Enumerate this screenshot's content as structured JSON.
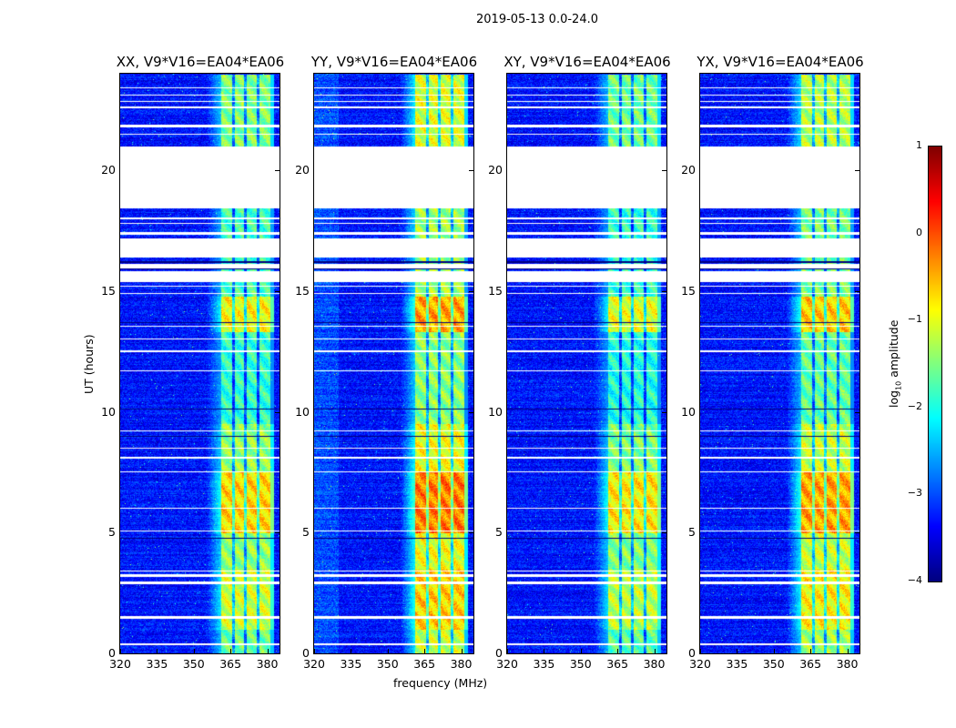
{
  "chart_data": {
    "type": "heatmap",
    "title": "2019-05-13 0.0-24.0",
    "xlabel": "frequency (MHz)",
    "ylabel": "UT (hours)",
    "xlim": [
      320,
      385
    ],
    "ylim": [
      0,
      24
    ],
    "xticks": [
      "320",
      "335",
      "350",
      "365",
      "380"
    ],
    "xtick_values": [
      320,
      335,
      350,
      365,
      380
    ],
    "yticks": [
      "0",
      "5",
      "10",
      "15",
      "20"
    ],
    "ytick_values": [
      0,
      5,
      10,
      15,
      20
    ],
    "panels": [
      {
        "title": "XX, V9*V16=EA04*EA06",
        "level_offset": 0
      },
      {
        "title": "YY, V9*V16=EA04*EA06",
        "level_offset": 0.45
      },
      {
        "title": "XY, V9*V16=EA04*EA06",
        "level_offset": -0.1
      },
      {
        "title": "YX, V9*V16=EA04*EA06",
        "level_offset": 0.25
      }
    ],
    "colorbar": {
      "label": "log10 amplitude",
      "label_main": "log",
      "label_sub": "10",
      "label_rest": " amplitude",
      "range": [
        -4,
        1
      ],
      "ticks": [
        "1",
        "0",
        "−1",
        "−2",
        "−3",
        "−4"
      ],
      "tick_values": [
        1,
        0,
        -1,
        -2,
        -3,
        -4
      ],
      "colormap": "jet"
    },
    "background_level": -3.3,
    "rfi_band_mhz": [
      361,
      381
    ],
    "band_gaps_mhz": [
      366,
      371,
      376
    ],
    "band_levels_by_hour": [
      {
        "from": 0,
        "to": 1,
        "level": -1.6
      },
      {
        "from": 1,
        "to": 3.5,
        "level": -1.1
      },
      {
        "from": 3.5,
        "to": 5,
        "level": -1.4
      },
      {
        "from": 5,
        "to": 7.5,
        "level": -0.7
      },
      {
        "from": 7.5,
        "to": 9.5,
        "level": -1.4
      },
      {
        "from": 9.5,
        "to": 13.3,
        "level": -1.9
      },
      {
        "from": 13.3,
        "to": 14.8,
        "level": -0.9
      },
      {
        "from": 14.8,
        "to": 18.5,
        "level": -1.8
      },
      {
        "from": 21,
        "to": 24,
        "level": -1.5
      }
    ],
    "flagged_hours": [
      [
        0.35,
        0.45
      ],
      [
        1.45,
        1.55
      ],
      [
        2.9,
        3.0
      ],
      [
        3.2,
        3.28
      ],
      [
        3.4,
        3.45
      ],
      [
        5.05,
        5.1
      ],
      [
        6.0,
        6.06
      ],
      [
        7.5,
        7.56
      ],
      [
        8.1,
        8.14
      ],
      [
        8.5,
        8.55
      ],
      [
        9.2,
        9.25
      ],
      [
        11.7,
        11.75
      ],
      [
        12.5,
        12.58
      ],
      [
        13.0,
        13.05
      ],
      [
        13.55,
        13.6
      ],
      [
        14.9,
        14.95
      ],
      [
        15.2,
        15.25
      ],
      [
        15.4,
        15.85
      ],
      [
        15.95,
        16.15
      ],
      [
        16.4,
        17.2
      ],
      [
        17.35,
        17.45
      ],
      [
        17.8,
        17.85
      ],
      [
        18.0,
        18.05
      ],
      [
        18.45,
        21.0
      ],
      [
        21.5,
        21.55
      ],
      [
        21.8,
        21.9
      ],
      [
        22.6,
        22.65
      ],
      [
        22.85,
        22.9
      ],
      [
        23.1,
        23.15
      ],
      [
        23.4,
        23.45
      ]
    ],
    "dark_rows_hours": [
      [
        4.75,
        4.8
      ],
      [
        9.0,
        9.04
      ],
      [
        10.1,
        10.15
      ],
      [
        13.7,
        13.74
      ],
      [
        15.9,
        15.95
      ],
      [
        16.2,
        16.25
      ],
      [
        17.3,
        17.33
      ]
    ]
  }
}
